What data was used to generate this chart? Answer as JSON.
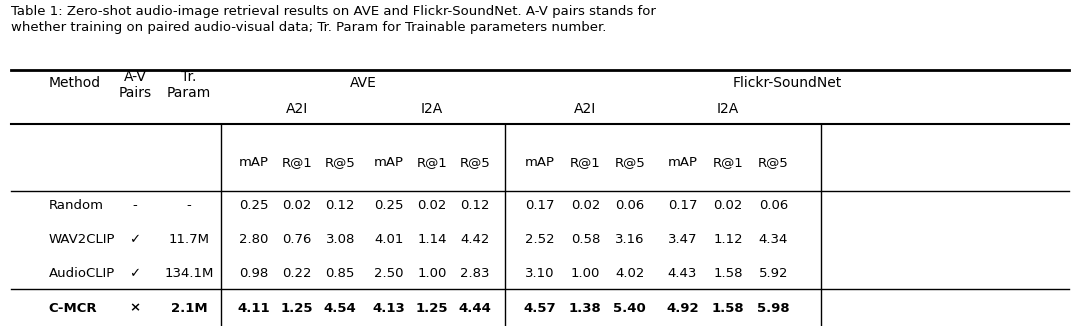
{
  "caption": "Table 1: Zero-shot audio-image retrieval results on AVE and Flickr-SoundNet. A-V pairs stands for\nwhether training on paired audio-visual data; Tr. Param for Trainable parameters number.",
  "header_row1": [
    "Method",
    "A-V\nPairs",
    "Tr.\nParam",
    "AVE",
    "",
    "",
    "",
    "",
    "",
    "Flickr-SoundNet",
    "",
    "",
    "",
    "",
    ""
  ],
  "header_row2": [
    "",
    "",
    "",
    "A2I",
    "",
    "",
    "I2A",
    "",
    "",
    "A2I",
    "",
    "",
    "I2A",
    "",
    ""
  ],
  "header_row3": [
    "",
    "",
    "",
    "mAP",
    "R@1",
    "R@5",
    "mAP",
    "R@1",
    "R@5",
    "mAP",
    "R@1",
    "R@5",
    "mAP",
    "R@1",
    "R@5"
  ],
  "rows": [
    [
      "Random",
      "-",
      "-",
      "0.25",
      "0.02",
      "0.12",
      "0.25",
      "0.02",
      "0.12",
      "0.17",
      "0.02",
      "0.06",
      "0.17",
      "0.02",
      "0.06"
    ],
    [
      "WAV2CLIP",
      "✓",
      "11.7M",
      "2.80",
      "0.76",
      "3.08",
      "4.01",
      "1.14",
      "4.42",
      "2.52",
      "0.58",
      "3.16",
      "3.47",
      "1.12",
      "4.34"
    ],
    [
      "AudioCLIP",
      "✓",
      "134.1M",
      "0.98",
      "0.22",
      "0.85",
      "2.50",
      "1.00",
      "2.83",
      "3.10",
      "1.00",
      "4.02",
      "4.43",
      "1.58",
      "5.92"
    ]
  ],
  "bold_row": [
    "C-MCR",
    "×",
    "2.1M",
    "4.11",
    "1.25",
    "4.54",
    "4.13",
    "1.25",
    "4.44",
    "4.57",
    "1.38",
    "5.40",
    "4.92",
    "1.58",
    "5.98"
  ],
  "background_color": "#ffffff",
  "text_color": "#000000",
  "bold_row_top_line": true
}
